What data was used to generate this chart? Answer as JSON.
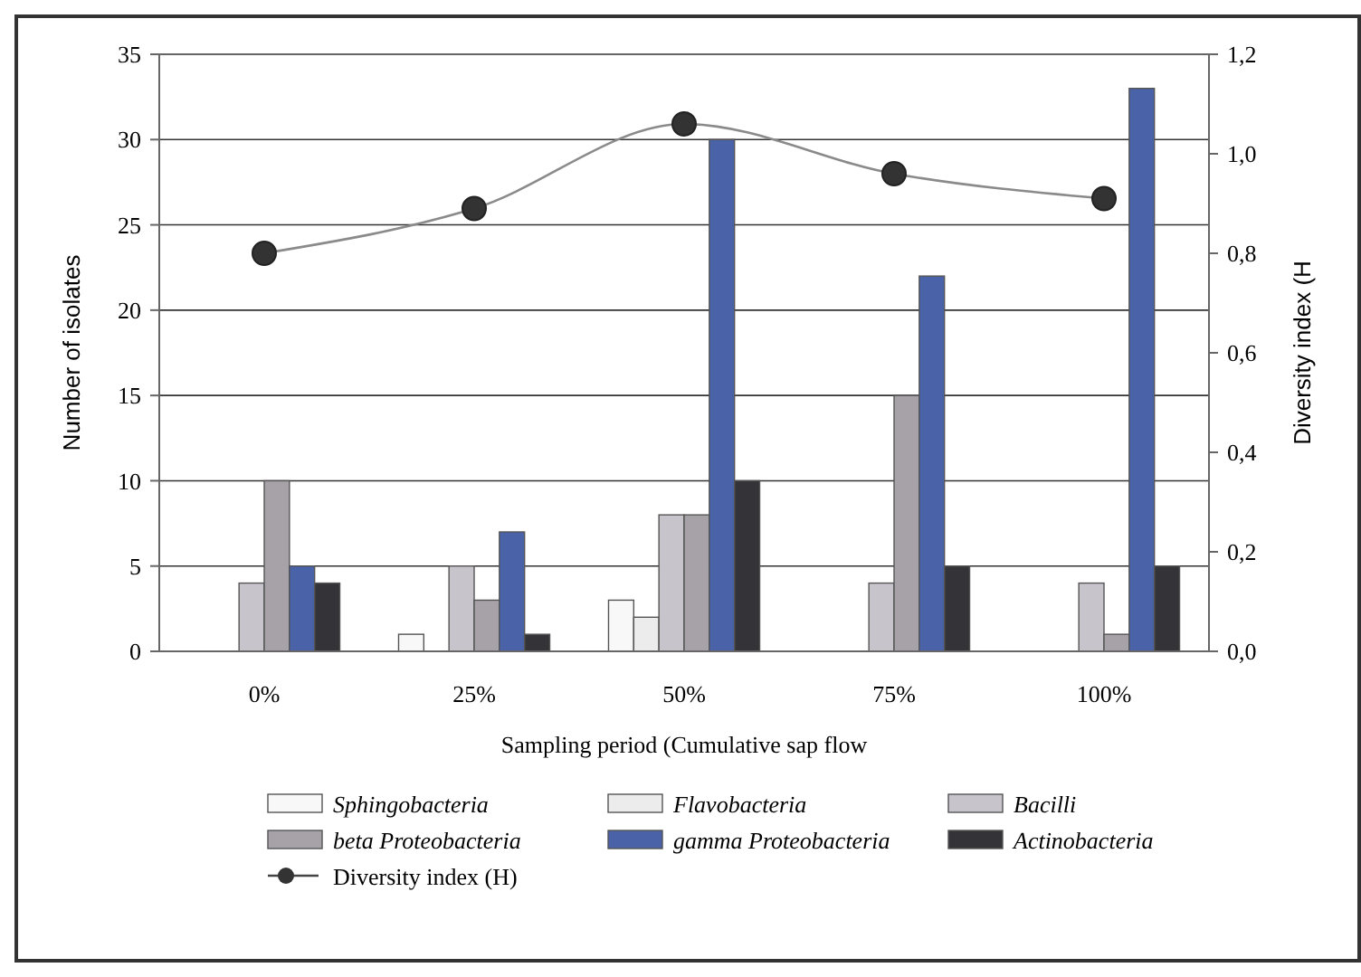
{
  "chart_data": {
    "type": "bar",
    "xlabel": "Sampling period (Cumulative sap flow",
    "ylabel": "Number of isolates",
    "y2label": "Diversity index (H",
    "categories": [
      "0%",
      "25%",
      "50%",
      "75%",
      "100%"
    ],
    "series": [
      {
        "name": "Sphingobacteria",
        "color": "#f8f8f8",
        "values": [
          0,
          1,
          3,
          0,
          0
        ]
      },
      {
        "name": "Flavobacteria",
        "color": "#ececec",
        "values": [
          0,
          0,
          2,
          0,
          0
        ]
      },
      {
        "name": "Bacilli",
        "color": "#c8c4cc",
        "values": [
          4,
          5,
          8,
          4,
          4
        ]
      },
      {
        "name": "beta Proteobacteria",
        "color": "#a6a2a8",
        "values": [
          10,
          3,
          8,
          15,
          1
        ]
      },
      {
        "name": "gamma Proteobacteria",
        "color": "#4a62a8",
        "values": [
          5,
          7,
          30,
          22,
          33
        ]
      },
      {
        "name": "Actinobacteria",
        "color": "#343438",
        "values": [
          4,
          1,
          10,
          5,
          5
        ]
      },
      {
        "name": "Diversity index (H)",
        "type": "line",
        "axis": "y2",
        "color": "#333333",
        "marker": "circle",
        "values": [
          0.8,
          0.89,
          1.06,
          0.96,
          0.91
        ]
      }
    ],
    "ylim": [
      0,
      35
    ],
    "yticks": [
      0,
      5,
      10,
      15,
      20,
      25,
      30,
      35
    ],
    "y2lim": [
      0,
      1.2
    ],
    "y2ticks": [
      {
        "value": 0,
        "label": "0,0"
      },
      {
        "value": 0.2,
        "label": "0,2"
      },
      {
        "value": 0.4,
        "label": "0,4"
      },
      {
        "value": 0.6,
        "label": "0,6"
      },
      {
        "value": 0.8,
        "label": "0,8"
      },
      {
        "value": 1,
        "label": "1,0"
      },
      {
        "value": 1.2,
        "label": "1,2"
      }
    ],
    "grid": "y",
    "legend": "bottom"
  }
}
